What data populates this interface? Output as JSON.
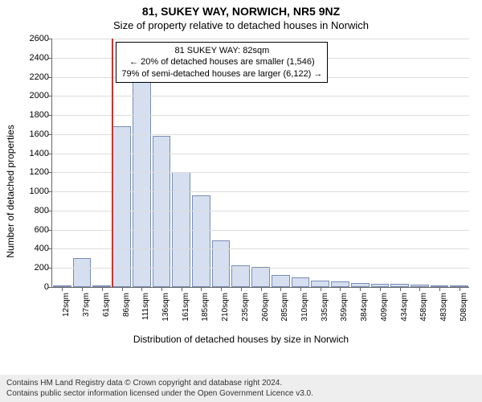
{
  "title_main": "81, SUKEY WAY, NORWICH, NR5 9NZ",
  "title_sub": "Size of property relative to detached houses in Norwich",
  "y_axis_label": "Number of detached properties",
  "x_axis_label": "Distribution of detached houses by size in Norwich",
  "chart": {
    "type": "histogram",
    "bar_fill": "#d5dff0",
    "bar_border": "#7a8db5",
    "grid_color": "#dddddd",
    "marker_color": "#c7352e",
    "y_max": 2600,
    "y_ticks": [
      0,
      200,
      400,
      600,
      800,
      1000,
      1200,
      1400,
      1600,
      1800,
      2000,
      2200,
      2400,
      2600
    ],
    "x_labels": [
      "12sqm",
      "37sqm",
      "61sqm",
      "86sqm",
      "111sqm",
      "136sqm",
      "161sqm",
      "185sqm",
      "210sqm",
      "235sqm",
      "260sqm",
      "285sqm",
      "310sqm",
      "335sqm",
      "359sqm",
      "384sqm",
      "409sqm",
      "434sqm",
      "458sqm",
      "483sqm",
      "508sqm"
    ],
    "values": [
      20,
      300,
      20,
      1680,
      2150,
      1580,
      1200,
      960,
      490,
      230,
      210,
      130,
      105,
      70,
      60,
      40,
      35,
      30,
      25,
      20,
      20
    ],
    "marker_index": 3,
    "marker_offset": 0.0
  },
  "annotation": {
    "line1": "81 SUKEY WAY: 82sqm",
    "line2": "← 20% of detached houses are smaller (1,546)",
    "line3": "79% of semi-detached houses are larger (6,122) →"
  },
  "footer": {
    "line1": "Contains HM Land Registry data © Crown copyright and database right 2024.",
    "line2": "Contains public sector information licensed under the Open Government Licence v3.0."
  }
}
